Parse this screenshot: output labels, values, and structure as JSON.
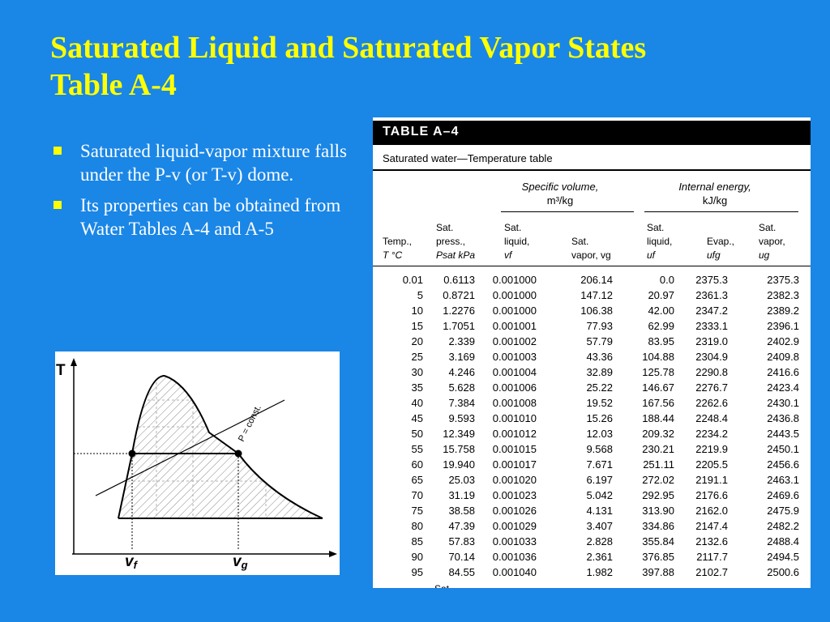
{
  "slide": {
    "title_line1": "Saturated Liquid and Saturated Vapor States",
    "title_line2": "Table A-4",
    "bullets": [
      "Saturated liquid-vapor mixture falls under the P-v (or T-v) dome.",
      "Its properties can be obtained from Water Tables A-4 and A-5"
    ]
  },
  "diagram": {
    "axis_y": "T",
    "label_vf": "v",
    "label_vf_sub": "f",
    "label_vg": "v",
    "label_vg_sub": "g",
    "isobar_label": "P = const."
  },
  "table": {
    "heading": "TABLE A–4",
    "subtitle": "Saturated water—Temperature table",
    "group_specific_volume": "Specific volume,",
    "group_specific_volume_unit": "m³/kg",
    "group_internal_energy": "Internal energy,",
    "group_internal_energy_unit": "kJ/kg",
    "col_temp_1": "Temp.,",
    "col_temp_2": "T °C",
    "col_press_1": "Sat.",
    "col_press_2": "press.,",
    "col_press_3": "Psat kPa",
    "col_vf_1": "Sat.",
    "col_vf_2": "liquid,",
    "col_vf_3": "vf",
    "col_vg_1": "Sat.",
    "col_vg_2": "vapor, vg",
    "col_uf_1": "Sat.",
    "col_uf_2": "liquid,",
    "col_uf_3": "uf",
    "col_ufg_1": "Evap.,",
    "col_ufg_2": "ufg",
    "col_ug_1": "Sat.",
    "col_ug_2": "vapor,",
    "col_ug_3": "ug",
    "rows": [
      [
        "0.01",
        "0.6113",
        "0.001000",
        "206.14",
        "0.0",
        "2375.3",
        "2375.3"
      ],
      [
        "5",
        "0.8721",
        "0.001000",
        "147.12",
        "20.97",
        "2361.3",
        "2382.3"
      ],
      [
        "10",
        "1.2276",
        "0.001000",
        "106.38",
        "42.00",
        "2347.2",
        "2389.2"
      ],
      [
        "15",
        "1.7051",
        "0.001001",
        "77.93",
        "62.99",
        "2333.1",
        "2396.1"
      ],
      [
        "20",
        "2.339",
        "0.001002",
        "57.79",
        "83.95",
        "2319.0",
        "2402.9"
      ],
      [
        "25",
        "3.169",
        "0.001003",
        "43.36",
        "104.88",
        "2304.9",
        "2409.8"
      ],
      [
        "30",
        "4.246",
        "0.001004",
        "32.89",
        "125.78",
        "2290.8",
        "2416.6"
      ],
      [
        "35",
        "5.628",
        "0.001006",
        "25.22",
        "146.67",
        "2276.7",
        "2423.4"
      ],
      [
        "40",
        "7.384",
        "0.001008",
        "19.52",
        "167.56",
        "2262.6",
        "2430.1"
      ],
      [
        "45",
        "9.593",
        "0.001010",
        "15.26",
        "188.44",
        "2248.4",
        "2436.8"
      ],
      [
        "50",
        "12.349",
        "0.001012",
        "12.03",
        "209.32",
        "2234.2",
        "2443.5"
      ],
      [
        "55",
        "15.758",
        "0.001015",
        "9.568",
        "230.21",
        "2219.9",
        "2450.1"
      ],
      [
        "60",
        "19.940",
        "0.001017",
        "7.671",
        "251.11",
        "2205.5",
        "2456.6"
      ],
      [
        "65",
        "25.03",
        "0.001020",
        "6.197",
        "272.02",
        "2191.1",
        "2463.1"
      ],
      [
        "70",
        "31.19",
        "0.001023",
        "5.042",
        "292.95",
        "2176.6",
        "2469.6"
      ],
      [
        "75",
        "38.58",
        "0.001026",
        "4.131",
        "313.90",
        "2162.0",
        "2475.9"
      ],
      [
        "80",
        "47.39",
        "0.001029",
        "3.407",
        "334.86",
        "2147.4",
        "2482.2"
      ],
      [
        "85",
        "57.83",
        "0.001033",
        "2.828",
        "355.84",
        "2132.6",
        "2488.4"
      ],
      [
        "90",
        "70.14",
        "0.001036",
        "2.361",
        "376.85",
        "2117.7",
        "2494.5"
      ],
      [
        "95",
        "84.55",
        "0.001040",
        "1.982",
        "397.88",
        "2102.7",
        "2500.6"
      ]
    ],
    "cut_off_text": "Sat."
  }
}
